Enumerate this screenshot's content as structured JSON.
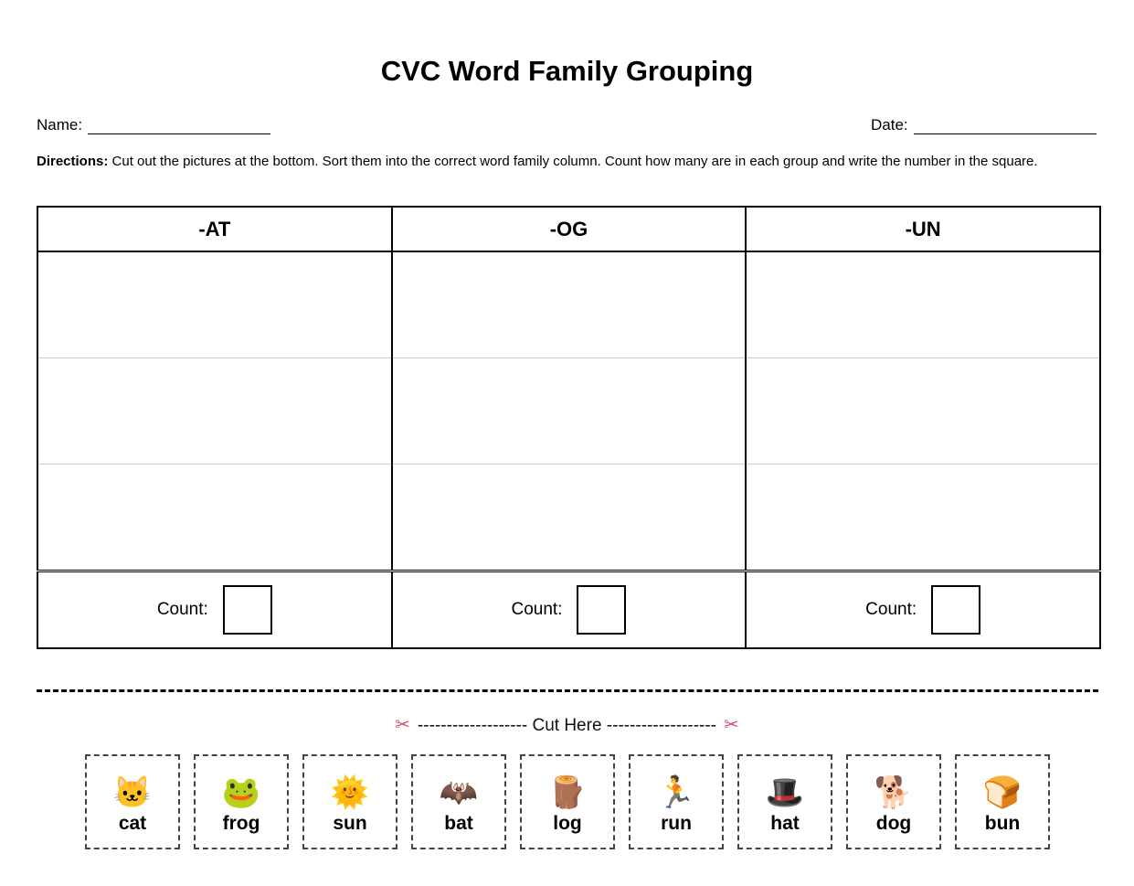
{
  "title": "CVC Word Family Grouping",
  "fields": {
    "name_label": "Name:",
    "name_value": "",
    "date_label": "Date:",
    "date_value": ""
  },
  "directions": {
    "label": "Directions:",
    "text": " Cut out the pictures at the bottom. Sort them into the correct word family column. Count how many are in each group and write the number in the square."
  },
  "grid": {
    "columns": [
      {
        "header": "-AT",
        "count_label": "Count:",
        "count_value": ""
      },
      {
        "header": "-OG",
        "count_label": "Count:",
        "count_value": ""
      },
      {
        "header": "-UN",
        "count_label": "Count:",
        "count_value": ""
      }
    ],
    "rows_per_column": 3
  },
  "cut": {
    "left_icon": "scissors-icon",
    "text": "------------------- Cut Here -------------------",
    "right_icon": "scissors-icon",
    "glyph": "✂"
  },
  "cards": [
    {
      "word": "cat",
      "icon": "cat-face-icon",
      "glyph": "🐱"
    },
    {
      "word": "frog",
      "icon": "frog-icon",
      "glyph": "🐸"
    },
    {
      "word": "sun",
      "icon": "sun-icon",
      "glyph": "🌞"
    },
    {
      "word": "bat",
      "icon": "bat-icon",
      "glyph": "🦇"
    },
    {
      "word": "log",
      "icon": "wood-log-icon",
      "glyph": "🪵"
    },
    {
      "word": "run",
      "icon": "person-running-icon",
      "glyph": "🏃"
    },
    {
      "word": "hat",
      "icon": "top-hat-icon",
      "glyph": "🎩"
    },
    {
      "word": "dog",
      "icon": "dog-icon",
      "glyph": "🐕"
    },
    {
      "word": "bun",
      "icon": "bread-icon",
      "glyph": "🍞"
    }
  ]
}
